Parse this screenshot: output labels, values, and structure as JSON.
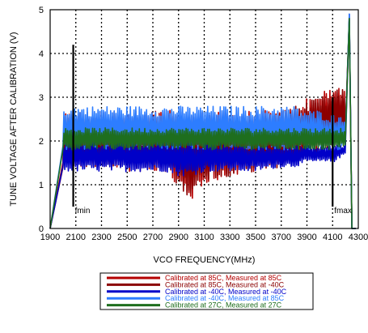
{
  "chart_data": {
    "type": "line",
    "title": "",
    "xlabel": "VCO FREQUENCY(MHz)",
    "ylabel": "TUNE VOLTAGE AFTER CALIBRATION (V)",
    "xlim": [
      1900,
      4300
    ],
    "ylim": [
      0,
      5
    ],
    "x_ticks": [
      1900,
      2100,
      2300,
      2500,
      2700,
      2900,
      3100,
      3300,
      3500,
      3700,
      3900,
      4100,
      4300
    ],
    "y_ticks": [
      0,
      1,
      2,
      3,
      4,
      5
    ],
    "x_tick_labels": [
      "1900",
      "2100",
      "2300",
      "2500",
      "2700",
      "2900",
      "3100",
      "3300",
      "3500",
      "3700",
      "3900",
      "4100",
      "4300"
    ],
    "y_tick_labels": [
      "0",
      "1",
      "2",
      "3",
      "4",
      "5"
    ],
    "grid": true,
    "grid_style": "dotted",
    "legend_position": "bottom",
    "annotations": [
      {
        "text": "fmin",
        "x": 2080,
        "line_ymin": 0.5,
        "line_ymax": 4.2
      },
      {
        "text": "fmax",
        "x": 4100,
        "line_ymin": 0.5,
        "line_ymax": 3.0
      }
    ],
    "series": [
      {
        "name": "Calibrated at 85C, Measured at 85C",
        "color": "#b40000",
        "x": [
          1900,
          2000,
          2100,
          2500,
          2800,
          2900,
          3000,
          3100,
          3500,
          3700,
          3800,
          3900,
          4000,
          4100,
          4150,
          4200,
          4230,
          4250,
          4280
        ],
        "ymin": [
          0.0,
          1.3,
          1.4,
          1.3,
          1.3,
          0.8,
          0.6,
          1.0,
          1.3,
          1.4,
          1.5,
          1.6,
          1.7,
          1.8,
          1.9,
          2.0,
          4.8,
          0.0,
          0.0
        ],
        "ymax": [
          0.0,
          2.6,
          2.7,
          2.7,
          2.7,
          2.7,
          2.7,
          2.7,
          2.7,
          2.7,
          2.8,
          3.0,
          3.1,
          3.2,
          3.3,
          3.3,
          4.8,
          0.0,
          0.0
        ]
      },
      {
        "name": "Calibrated at 85C, Measured at -40C",
        "color": "#8b0000",
        "x": [
          1900,
          2000,
          2100,
          2500,
          2800,
          2900,
          3000,
          3100,
          3500,
          3700,
          3800,
          3900,
          4000,
          4100,
          4150,
          4200,
          4230,
          4250,
          4280
        ],
        "ymin": [
          0.0,
          1.4,
          1.4,
          1.4,
          1.4,
          0.9,
          0.7,
          1.1,
          1.3,
          1.4,
          1.5,
          1.6,
          1.7,
          1.8,
          1.9,
          2.0,
          4.8,
          0.0,
          0.0
        ],
        "ymax": [
          0.0,
          2.5,
          2.6,
          2.6,
          2.6,
          2.6,
          2.6,
          2.6,
          2.6,
          2.7,
          2.8,
          2.9,
          3.0,
          3.1,
          3.2,
          3.2,
          4.8,
          0.0,
          0.0
        ]
      },
      {
        "name": "Calibrated at -40C, Measured at -40C",
        "color": "#0000c8",
        "x": [
          1900,
          2000,
          2100,
          2500,
          2800,
          2900,
          3000,
          3100,
          3500,
          3700,
          3800,
          3900,
          4000,
          4100,
          4150,
          4200,
          4230,
          4250,
          4280
        ],
        "ymin": [
          0.0,
          1.3,
          1.3,
          1.3,
          1.3,
          1.2,
          1.2,
          1.3,
          1.3,
          1.4,
          1.4,
          1.5,
          1.5,
          1.5,
          1.6,
          1.7,
          4.9,
          0.0,
          0.0
        ],
        "ymax": [
          0.0,
          2.0,
          2.0,
          2.0,
          2.0,
          2.0,
          2.0,
          2.0,
          1.9,
          1.9,
          1.9,
          1.9,
          1.9,
          1.9,
          1.9,
          1.9,
          4.9,
          0.0,
          0.0
        ]
      },
      {
        "name": "Calibrated at -40C, Measured at 85C",
        "color": "#2d7dff",
        "x": [
          1900,
          2000,
          2100,
          2500,
          2800,
          2900,
          3000,
          3100,
          3500,
          3700,
          3800,
          3900,
          4000,
          4100,
          4150,
          4200,
          4230,
          4250,
          4280
        ],
        "ymin": [
          0.0,
          1.8,
          1.8,
          1.8,
          1.8,
          1.8,
          1.8,
          1.8,
          1.8,
          1.8,
          1.8,
          1.8,
          1.8,
          1.8,
          1.8,
          1.9,
          4.9,
          0.0,
          0.0
        ],
        "ymax": [
          0.0,
          2.8,
          2.8,
          2.8,
          2.8,
          2.8,
          2.8,
          2.8,
          2.8,
          2.8,
          2.8,
          2.7,
          2.7,
          2.6,
          2.6,
          2.6,
          4.9,
          0.0,
          0.0
        ]
      },
      {
        "name": "Calibrated at 27C, Measured at 27C",
        "color": "#1e6e1e",
        "x": [
          1900,
          2000,
          2100,
          2500,
          2800,
          2900,
          3000,
          3100,
          3500,
          3700,
          3800,
          3900,
          4000,
          4100,
          4150,
          4200,
          4230,
          4250,
          4280
        ],
        "ymin": [
          0.0,
          1.8,
          1.8,
          1.8,
          1.8,
          1.8,
          1.8,
          1.8,
          1.8,
          1.8,
          1.8,
          1.8,
          1.8,
          1.8,
          1.8,
          1.9,
          4.8,
          0.0,
          0.0
        ],
        "ymax": [
          0.0,
          2.3,
          2.3,
          2.3,
          2.3,
          2.3,
          2.3,
          2.3,
          2.3,
          2.3,
          2.3,
          2.3,
          2.3,
          2.3,
          2.3,
          2.3,
          4.8,
          0.0,
          0.0
        ]
      }
    ]
  }
}
